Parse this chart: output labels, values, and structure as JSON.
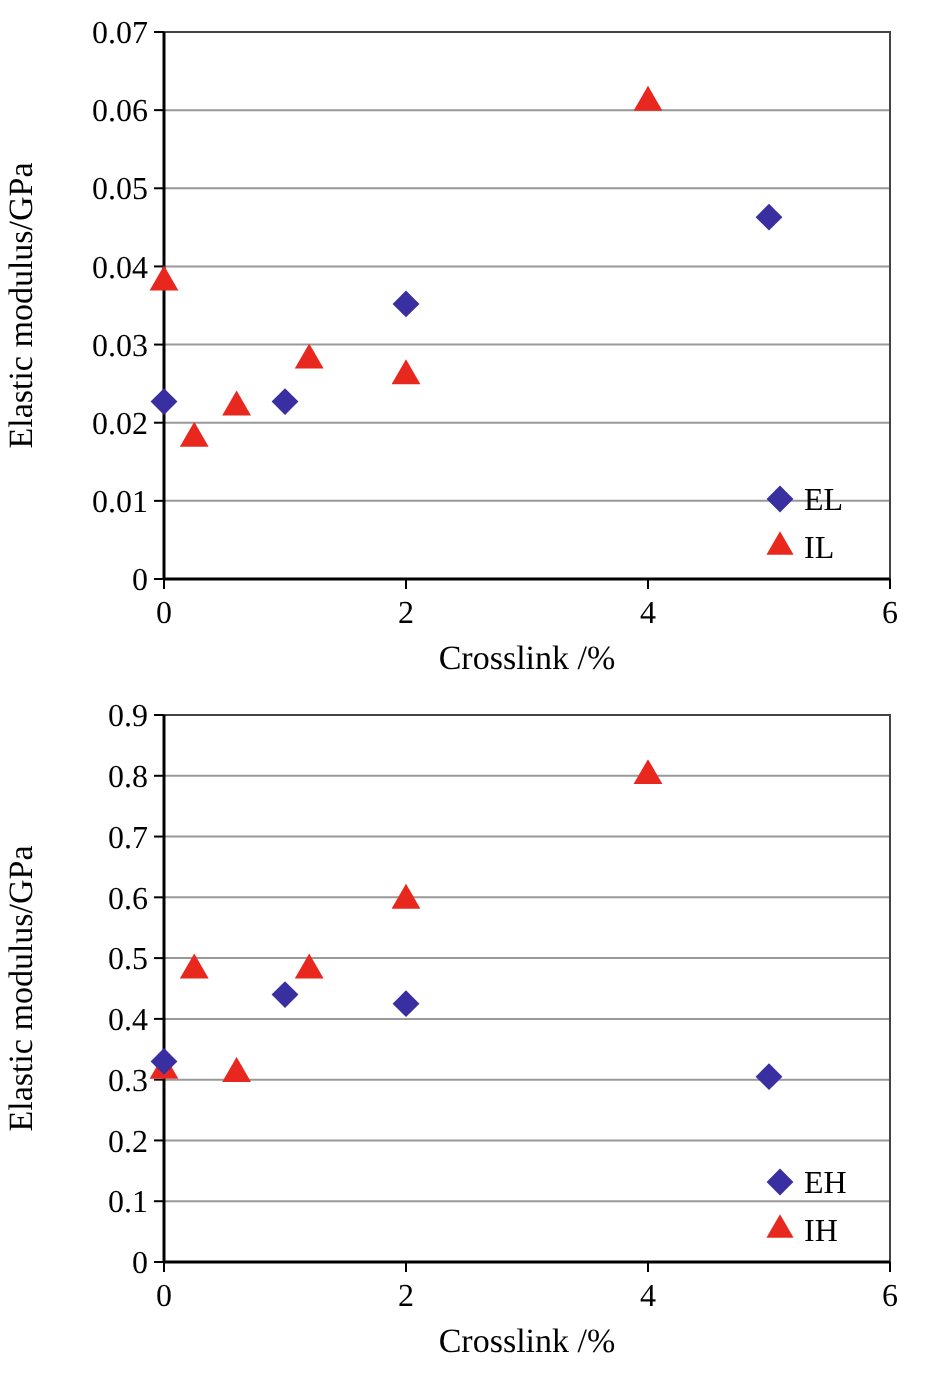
{
  "chart_data": [
    {
      "type": "scatter",
      "xlabel": "Crosslink /%",
      "ylabel": "Elastic modulus/GPa",
      "xlim": [
        0,
        6
      ],
      "xticks": [
        0,
        2,
        4,
        6
      ],
      "ylim": [
        0,
        0.07
      ],
      "yticks": [
        0,
        0.01,
        0.02,
        0.03,
        0.04,
        0.05,
        0.06,
        0.07
      ],
      "grid": "y",
      "legend": "bottom right",
      "series": [
        {
          "name": "EL",
          "color": "#3a2fa0",
          "marker": "diamond",
          "x": [
            0,
            1,
            2,
            5
          ],
          "values": [
            0.0227,
            0.0227,
            0.0352,
            0.0463
          ]
        },
        {
          "name": "IL",
          "color": "#e8281e",
          "marker": "triangle",
          "x": [
            0,
            0.25,
            0.6,
            1.2,
            2,
            4
          ],
          "values": [
            0.038,
            0.018,
            0.022,
            0.028,
            0.026,
            0.061
          ]
        }
      ]
    },
    {
      "type": "scatter",
      "xlabel": "Crosslink /%",
      "ylabel": "Elastic modulus/GPa",
      "xlim": [
        0,
        6
      ],
      "xticks": [
        0,
        2,
        4,
        6
      ],
      "ylim": [
        0,
        0.9
      ],
      "yticks": [
        0,
        0.1,
        0.2,
        0.3,
        0.4,
        0.5,
        0.6,
        0.7,
        0.8,
        0.9
      ],
      "grid": "y",
      "legend": "bottom right",
      "series": [
        {
          "name": "EH",
          "color": "#3a2fa0",
          "marker": "diamond",
          "x": [
            0,
            1,
            2,
            5
          ],
          "values": [
            0.33,
            0.44,
            0.425,
            0.305
          ]
        },
        {
          "name": "IH",
          "color": "#e8281e",
          "marker": "triangle",
          "x": [
            0,
            0.25,
            0.6,
            1.2,
            2,
            4
          ],
          "values": [
            0.315,
            0.48,
            0.31,
            0.48,
            0.595,
            0.8
          ]
        }
      ]
    }
  ]
}
